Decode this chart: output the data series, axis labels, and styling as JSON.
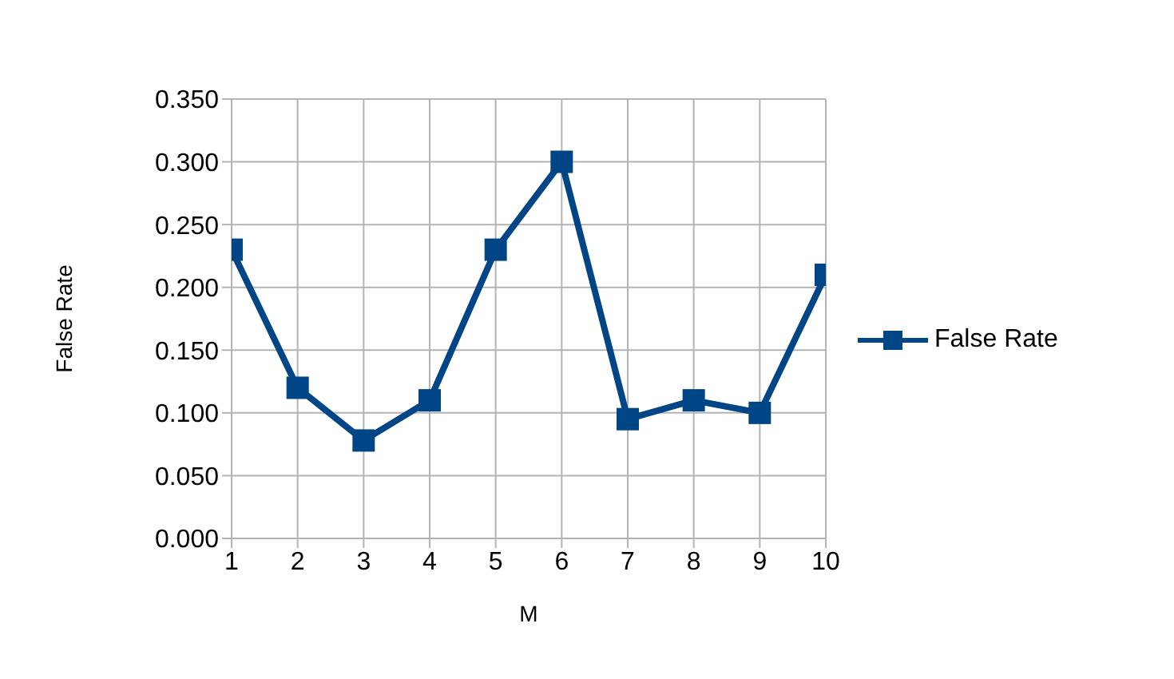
{
  "chart_data": {
    "type": "line",
    "xlabel": "M",
    "ylabel": "False Rate",
    "categories": [
      "1",
      "2",
      "3",
      "4",
      "5",
      "6",
      "7",
      "8",
      "9",
      "10"
    ],
    "series": [
      {
        "name": "False Rate",
        "color": "#004586",
        "values": [
          0.23,
          0.12,
          0.078,
          0.11,
          0.23,
          0.3,
          0.095,
          0.11,
          0.1,
          0.21
        ]
      }
    ],
    "ylim": [
      0,
      0.35
    ],
    "yticks": [
      {
        "value": 0,
        "label": "0.000"
      },
      {
        "value": 0.05,
        "label": "0.050"
      },
      {
        "value": 0.1,
        "label": "0.100"
      },
      {
        "value": 0.15,
        "label": "0.150"
      },
      {
        "value": 0.2,
        "label": "0.200"
      },
      {
        "value": 0.25,
        "label": "0.250"
      },
      {
        "value": 0.3,
        "label": "0.300"
      },
      {
        "value": 0.35,
        "label": "0.350"
      }
    ],
    "grid": true,
    "legend": "right",
    "marker": "square",
    "line_style": "solid"
  }
}
